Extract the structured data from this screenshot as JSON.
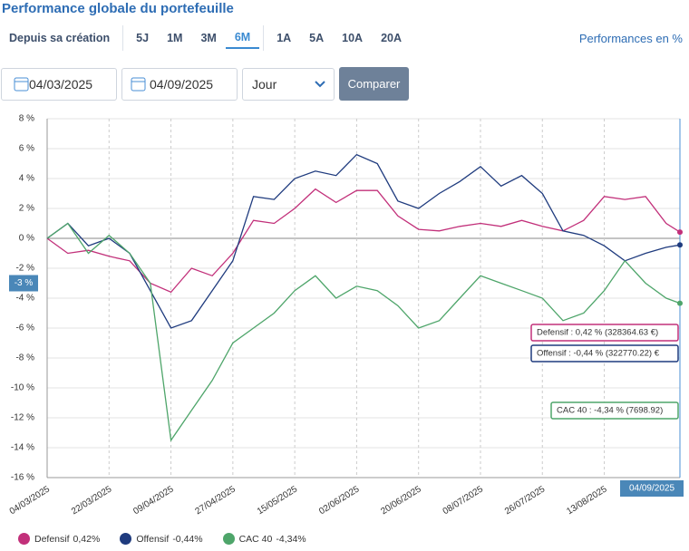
{
  "header": {
    "title": "Performance globale du portefeuille",
    "periods": [
      "Depuis sa création",
      "5J",
      "1M",
      "3M",
      "6M",
      "1A",
      "5A",
      "10A",
      "20A"
    ],
    "active_period": "6M",
    "units_note": "Performances en %"
  },
  "controls": {
    "start_date": "04/03/2025",
    "end_date": "04/09/2025",
    "granularity": "Jour",
    "compare_button": "Comparer"
  },
  "chart_data": {
    "type": "line",
    "x": [
      "04/03/2025",
      "10/03/2025",
      "16/03/2025",
      "22/03/2025",
      "28/03/2025",
      "03/04/2025",
      "09/04/2025",
      "15/04/2025",
      "21/04/2025",
      "27/04/2025",
      "03/05/2025",
      "09/05/2025",
      "15/05/2025",
      "21/05/2025",
      "27/05/2025",
      "02/06/2025",
      "08/06/2025",
      "14/06/2025",
      "20/06/2025",
      "26/06/2025",
      "02/07/2025",
      "08/07/2025",
      "14/07/2025",
      "20/07/2025",
      "26/07/2025",
      "01/08/2025",
      "07/08/2025",
      "13/08/2025",
      "19/08/2025",
      "25/08/2025",
      "31/08/2025",
      "04/09/2025"
    ],
    "series": [
      {
        "name": "Defensif",
        "color": "#c2307a",
        "legend_value": "0,42%",
        "tooltip": "Defensif : 0,42 % (328364.63 €)",
        "values": [
          0,
          -1.0,
          -0.8,
          -1.2,
          -1.5,
          -3.0,
          -3.6,
          -2.0,
          -2.5,
          -1.0,
          1.2,
          1.0,
          2.0,
          3.3,
          2.4,
          3.2,
          3.2,
          1.5,
          0.6,
          0.5,
          0.8,
          1.0,
          0.8,
          1.2,
          0.8,
          0.5,
          1.2,
          2.8,
          2.6,
          2.8,
          1.0,
          0.42
        ]
      },
      {
        "name": "Offensif",
        "color": "#1f3b7e",
        "legend_value": "-0,44%",
        "tooltip": "Offensif : -0,44 % (322770.22) €",
        "values": [
          0,
          1.0,
          -0.5,
          0,
          -1.0,
          -3.5,
          -6.0,
          -5.5,
          -3.5,
          -1.5,
          2.8,
          2.6,
          4.0,
          4.5,
          4.2,
          5.6,
          5.0,
          2.5,
          2.0,
          3.0,
          3.8,
          4.8,
          3.5,
          4.2,
          3.0,
          0.5,
          0.2,
          -0.5,
          -1.5,
          -1.0,
          -0.6,
          -0.44
        ]
      },
      {
        "name": "CAC 40",
        "color": "#4ea56a",
        "legend_value": "-4,34%",
        "tooltip": "CAC 40 : -4,34 % (7698.92)",
        "values": [
          0,
          1.0,
          -1.0,
          0.2,
          -1.0,
          -3.0,
          -13.5,
          -11.5,
          -9.5,
          -7.0,
          -6.0,
          -5.0,
          -3.5,
          -2.5,
          -4.0,
          -3.2,
          -3.5,
          -4.5,
          -6.0,
          -5.5,
          -4.0,
          -2.5,
          -3.0,
          -3.5,
          -4.0,
          -5.5,
          -5.0,
          -3.5,
          -1.5,
          -3.0,
          -4.0,
          -4.34
        ]
      }
    ],
    "xlim": [
      "04/03/2025",
      "04/09/2025"
    ],
    "xticks": [
      "04/03/2025",
      "22/03/2025",
      "09/04/2025",
      "27/04/2025",
      "15/05/2025",
      "02/06/2025",
      "20/06/2025",
      "08/07/2025",
      "26/07/2025",
      "13/08/2025"
    ],
    "ylim": [
      -16,
      8
    ],
    "yticks": [
      {
        "value": -16,
        "label": "-16 %"
      },
      {
        "value": -14,
        "label": "-14 %"
      },
      {
        "value": -12,
        "label": "-12 %"
      },
      {
        "value": -10,
        "label": "-10 %"
      },
      {
        "value": -8,
        "label": "-8 %"
      },
      {
        "value": -6,
        "label": "-6 %"
      },
      {
        "value": -4,
        "label": "-4 %"
      },
      {
        "value": -2,
        "label": "-2 %"
      },
      {
        "value": 0,
        "label": "0 %"
      },
      {
        "value": 2,
        "label": "2 %"
      },
      {
        "value": 4,
        "label": "4 %"
      },
      {
        "value": 6,
        "label": "6 %"
      },
      {
        "value": 8,
        "label": "8 %"
      }
    ],
    "grid": true,
    "crosshair": {
      "y": {
        "value": -3,
        "label": "-3 %"
      },
      "x": "04/09/2025"
    }
  }
}
